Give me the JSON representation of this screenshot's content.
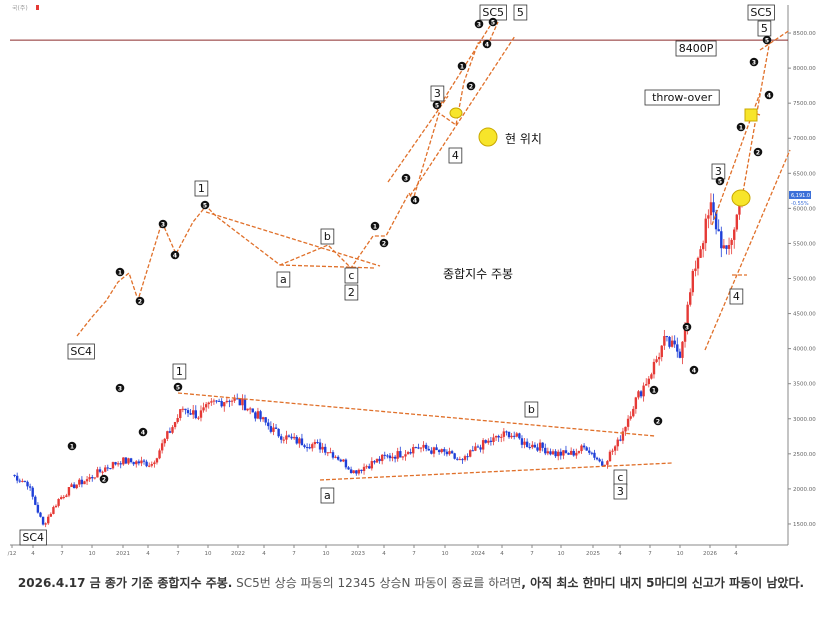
{
  "chart_data": {
    "type": "candlestick",
    "title": "",
    "ylabel": "",
    "xlabel": "",
    "ylim": [
      1200,
      8900
    ],
    "y_ticks": [
      1500,
      2000,
      2500,
      3000,
      3500,
      4000,
      4500,
      5000,
      5500,
      6000,
      6500,
      7000,
      7500,
      8000,
      8500
    ],
    "y_tick_labels": [
      "1500.00",
      "2000.00",
      "2500.00",
      "3000.00",
      "3500.00",
      "4000.00",
      "4500.00",
      "5000.00",
      "5500.00",
      "6000.00",
      "6500.00",
      "7000.00",
      "7500.00",
      "8000.00",
      "8500.00"
    ],
    "x_tick_labels": [
      "/12",
      "4",
      "7",
      "10",
      "2021",
      "4",
      "7",
      "10",
      "2022",
      "4",
      "7",
      "10",
      "2023",
      "4",
      "7",
      "10",
      "2024",
      "4",
      "7",
      "10",
      "2025",
      "4",
      "7",
      "10",
      "2026",
      "4"
    ],
    "resistance_level": {
      "value": 8400,
      "label": "8400P"
    },
    "current_price": {
      "value": "6,191.0",
      "change": "-0.55%"
    },
    "top_left_label": "국(주)",
    "series_close": [
      {
        "t": 0,
        "v": 2200
      },
      {
        "t": 1,
        "v": 2080
      },
      {
        "t": 2,
        "v": 1480
      },
      {
        "t": 3,
        "v": 1850
      },
      {
        "t": 4,
        "v": 2050
      },
      {
        "t": 5,
        "v": 2150
      },
      {
        "t": 6,
        "v": 2300
      },
      {
        "t": 7,
        "v": 2400
      },
      {
        "t": 8,
        "v": 2380
      },
      {
        "t": 9,
        "v": 2360
      },
      {
        "t": 10,
        "v": 2760
      },
      {
        "t": 11,
        "v": 3150
      },
      {
        "t": 12,
        "v": 3050
      },
      {
        "t": 13,
        "v": 3220
      },
      {
        "t": 14,
        "v": 3290
      },
      {
        "t": 15,
        "v": 3200
      },
      {
        "t": 16,
        "v": 3000
      },
      {
        "t": 17,
        "v": 2800
      },
      {
        "t": 18,
        "v": 2700
      },
      {
        "t": 19,
        "v": 2650
      },
      {
        "t": 20,
        "v": 2600
      },
      {
        "t": 21,
        "v": 2450
      },
      {
        "t": 22,
        "v": 2250
      },
      {
        "t": 23,
        "v": 2350
      },
      {
        "t": 24,
        "v": 2450
      },
      {
        "t": 25,
        "v": 2500
      },
      {
        "t": 26,
        "v": 2600
      },
      {
        "t": 27,
        "v": 2550
      },
      {
        "t": 28,
        "v": 2500
      },
      {
        "t": 29,
        "v": 2380
      },
      {
        "t": 30,
        "v": 2600
      },
      {
        "t": 31,
        "v": 2700
      },
      {
        "t": 32,
        "v": 2800
      },
      {
        "t": 33,
        "v": 2650
      },
      {
        "t": 34,
        "v": 2600
      },
      {
        "t": 35,
        "v": 2500
      },
      {
        "t": 36,
        "v": 2500
      },
      {
        "t": 37,
        "v": 2600
      },
      {
        "t": 38,
        "v": 2350
      },
      {
        "t": 39,
        "v": 2650
      },
      {
        "t": 40,
        "v": 3200
      },
      {
        "t": 41,
        "v": 3600
      },
      {
        "t": 42,
        "v": 4100
      },
      {
        "t": 43,
        "v": 3950
      },
      {
        "t": 44,
        "v": 5200
      },
      {
        "t": 45,
        "v": 6000
      },
      {
        "t": 46,
        "v": 5300
      },
      {
        "t": 47,
        "v": 6191
      }
    ],
    "annotations": {
      "lower": [
        {
          "text": "SC4",
          "type": "box"
        },
        {
          "text": "1",
          "type": "box"
        },
        {
          "text": "b",
          "type": "box"
        },
        {
          "text": "a",
          "type": "box"
        },
        {
          "text": "c",
          "type": "box"
        },
        {
          "text": "3",
          "type": "box"
        },
        {
          "text": "3",
          "type": "box"
        },
        {
          "text": "4",
          "type": "box"
        },
        {
          "text": "SC5",
          "type": "box"
        },
        {
          "text": "5",
          "type": "box"
        },
        {
          "text": "throw-over",
          "type": "box"
        }
      ],
      "upper_schematic": [
        {
          "text": "SC4",
          "type": "box"
        },
        {
          "text": "1",
          "type": "box"
        },
        {
          "text": "b",
          "type": "box"
        },
        {
          "text": "a",
          "type": "box"
        },
        {
          "text": "c",
          "type": "box"
        },
        {
          "text": "2",
          "type": "box"
        },
        {
          "text": "3",
          "type": "box"
        },
        {
          "text": "4",
          "type": "box"
        },
        {
          "text": "SC5",
          "type": "box"
        },
        {
          "text": "5",
          "type": "box"
        }
      ],
      "current_position_label": "현 위치",
      "chart_label": "종합지수 주봉"
    }
  },
  "caption": {
    "bold_part": "2026.4.17 금 종가 기준 종합지수 주봉.",
    "normal_part": " SC5번 상승 파동의 12345 상승N 파동이 종료를 하려면",
    "bold_tail": ", 아직 최소 한마디 내지 5마디의 신고가 파동이 남았다."
  }
}
